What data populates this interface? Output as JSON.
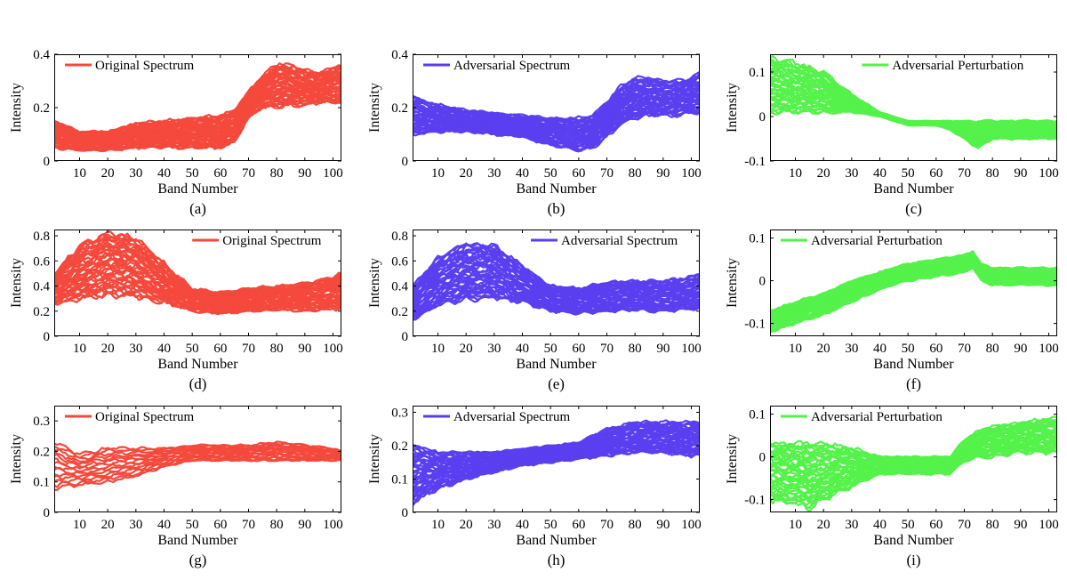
{
  "colors": {
    "original": "#f4493c",
    "adversarial": "#5a3ff0",
    "perturbation": "#54f24a"
  },
  "chart_data": [
    {
      "id": "a",
      "type": "line",
      "caption": "(a)",
      "legend": "Original Spectrum",
      "legend_position": "top-left",
      "color_key": "original",
      "xlabel": "Band Number",
      "ylabel": "Intensity",
      "xlim": [
        1,
        103
      ],
      "ylim": [
        0,
        0.4
      ],
      "xticks": [
        "10",
        "20",
        "30",
        "40",
        "50",
        "60",
        "70",
        "80",
        "90",
        "100"
      ],
      "yticks": [
        {
          "v": 0,
          "label": "0"
        },
        {
          "v": 0.2,
          "label": "0.2"
        },
        {
          "v": 0.4,
          "label": "0.4"
        }
      ],
      "grid": false,
      "series_count": 40,
      "envelope": {
        "x": [
          1,
          10,
          20,
          30,
          40,
          50,
          60,
          65,
          70,
          75,
          80,
          85,
          90,
          95,
          100,
          103
        ],
        "lower": [
          0.05,
          0.04,
          0.04,
          0.05,
          0.05,
          0.05,
          0.05,
          0.07,
          0.16,
          0.2,
          0.2,
          0.21,
          0.21,
          0.22,
          0.22,
          0.22
        ],
        "upper": [
          0.15,
          0.11,
          0.11,
          0.14,
          0.15,
          0.16,
          0.17,
          0.19,
          0.26,
          0.32,
          0.36,
          0.36,
          0.34,
          0.33,
          0.35,
          0.36
        ]
      }
    },
    {
      "id": "b",
      "type": "line",
      "caption": "(b)",
      "legend": "Adversarial Spectrum",
      "legend_position": "top-left",
      "color_key": "adversarial",
      "xlabel": "Band Number",
      "ylabel": "Intensity",
      "xlim": [
        1,
        103
      ],
      "ylim": [
        0,
        0.4
      ],
      "xticks": [
        "10",
        "20",
        "30",
        "40",
        "50",
        "60",
        "70",
        "80",
        "90",
        "100"
      ],
      "yticks": [
        {
          "v": 0,
          "label": "0"
        },
        {
          "v": 0.2,
          "label": "0.2"
        },
        {
          "v": 0.4,
          "label": "0.4"
        }
      ],
      "grid": false,
      "series_count": 40,
      "envelope": {
        "x": [
          1,
          10,
          20,
          30,
          40,
          50,
          60,
          65,
          70,
          75,
          80,
          85,
          90,
          95,
          100,
          103
        ],
        "lower": [
          0.1,
          0.11,
          0.11,
          0.1,
          0.09,
          0.06,
          0.04,
          0.05,
          0.09,
          0.14,
          0.16,
          0.17,
          0.17,
          0.17,
          0.18,
          0.18
        ],
        "upper": [
          0.24,
          0.21,
          0.19,
          0.18,
          0.17,
          0.16,
          0.16,
          0.17,
          0.22,
          0.28,
          0.31,
          0.31,
          0.3,
          0.3,
          0.31,
          0.33
        ]
      }
    },
    {
      "id": "c",
      "type": "line",
      "caption": "(c)",
      "legend": "Adversarial Perturbation",
      "legend_position": "top-right",
      "color_key": "perturbation",
      "xlabel": "Band Number",
      "ylabel": "Intensity",
      "xlim": [
        1,
        103
      ],
      "ylim": [
        -0.1,
        0.14
      ],
      "xticks": [
        "10",
        "20",
        "30",
        "40",
        "50",
        "60",
        "70",
        "80",
        "90",
        "100"
      ],
      "yticks": [
        {
          "v": -0.1,
          "label": "-0.1"
        },
        {
          "v": 0,
          "label": "0"
        },
        {
          "v": 0.1,
          "label": "0.1"
        }
      ],
      "grid": false,
      "series_count": 40,
      "envelope": {
        "x": [
          1,
          10,
          20,
          30,
          40,
          50,
          60,
          65,
          70,
          75,
          80,
          85,
          90,
          95,
          100,
          103
        ],
        "lower": [
          0.01,
          0.01,
          0.01,
          0.01,
          0.0,
          -0.02,
          -0.02,
          -0.03,
          -0.05,
          -0.07,
          -0.05,
          -0.05,
          -0.05,
          -0.05,
          -0.05,
          -0.05
        ],
        "upper": [
          0.13,
          0.12,
          0.1,
          0.05,
          0.01,
          -0.01,
          -0.01,
          -0.01,
          -0.01,
          -0.01,
          -0.01,
          -0.01,
          -0.01,
          -0.01,
          -0.01,
          -0.01
        ]
      }
    },
    {
      "id": "d",
      "type": "line",
      "caption": "(d)",
      "legend": "Original Spectrum",
      "legend_position": "top-right",
      "color_key": "original",
      "xlabel": "Band Number",
      "ylabel": "Intensity",
      "xlim": [
        1,
        103
      ],
      "ylim": [
        0,
        0.85
      ],
      "xticks": [
        "10",
        "20",
        "30",
        "40",
        "50",
        "60",
        "70",
        "80",
        "90",
        "100"
      ],
      "yticks": [
        {
          "v": 0,
          "label": "0"
        },
        {
          "v": 0.2,
          "label": "0.2"
        },
        {
          "v": 0.4,
          "label": "0.4"
        },
        {
          "v": 0.6,
          "label": "0.6"
        },
        {
          "v": 0.8,
          "label": "0.8"
        }
      ],
      "grid": false,
      "series_count": 40,
      "envelope": {
        "x": [
          1,
          10,
          20,
          30,
          40,
          50,
          60,
          70,
          80,
          90,
          100,
          103
        ],
        "lower": [
          0.25,
          0.3,
          0.33,
          0.32,
          0.27,
          0.2,
          0.18,
          0.2,
          0.21,
          0.2,
          0.22,
          0.22
        ],
        "upper": [
          0.5,
          0.72,
          0.82,
          0.78,
          0.58,
          0.38,
          0.35,
          0.38,
          0.4,
          0.42,
          0.47,
          0.5
        ]
      }
    },
    {
      "id": "e",
      "type": "line",
      "caption": "(e)",
      "legend": "Adversarial Spectrum",
      "legend_position": "top-right",
      "color_key": "adversarial",
      "xlabel": "Band Number",
      "ylabel": "Intensity",
      "xlim": [
        1,
        103
      ],
      "ylim": [
        0,
        0.85
      ],
      "xticks": [
        "10",
        "20",
        "30",
        "40",
        "50",
        "60",
        "70",
        "80",
        "90",
        "100"
      ],
      "yticks": [
        {
          "v": 0,
          "label": "0"
        },
        {
          "v": 0.2,
          "label": "0.2"
        },
        {
          "v": 0.4,
          "label": "0.4"
        },
        {
          "v": 0.6,
          "label": "0.6"
        },
        {
          "v": 0.8,
          "label": "0.8"
        }
      ],
      "grid": false,
      "series_count": 40,
      "envelope": {
        "x": [
          1,
          10,
          20,
          30,
          40,
          50,
          60,
          70,
          80,
          90,
          100,
          103
        ],
        "lower": [
          0.13,
          0.25,
          0.3,
          0.31,
          0.27,
          0.2,
          0.18,
          0.2,
          0.21,
          0.2,
          0.22,
          0.22
        ],
        "upper": [
          0.4,
          0.62,
          0.74,
          0.72,
          0.56,
          0.4,
          0.38,
          0.43,
          0.44,
          0.44,
          0.47,
          0.5
        ]
      }
    },
    {
      "id": "f",
      "type": "line",
      "caption": "(f)",
      "legend": "Adversarial Perturbation",
      "legend_position": "top-left",
      "color_key": "perturbation",
      "xlabel": "Band Number",
      "ylabel": "Intensity",
      "xlim": [
        1,
        103
      ],
      "ylim": [
        -0.13,
        0.12
      ],
      "xticks": [
        "10",
        "20",
        "30",
        "40",
        "50",
        "60",
        "70",
        "80",
        "90",
        "100"
      ],
      "yticks": [
        {
          "v": -0.1,
          "label": "-0.1"
        },
        {
          "v": 0,
          "label": "0"
        },
        {
          "v": 0.1,
          "label": "0.1"
        }
      ],
      "grid": false,
      "series_count": 40,
      "envelope": {
        "x": [
          1,
          10,
          20,
          30,
          40,
          50,
          60,
          70,
          73,
          76,
          80,
          90,
          100,
          103
        ],
        "lower": [
          -0.12,
          -0.1,
          -0.08,
          -0.05,
          -0.02,
          0.0,
          0.01,
          0.02,
          0.03,
          0.0,
          -0.01,
          -0.01,
          -0.01,
          -0.01
        ],
        "upper": [
          -0.07,
          -0.05,
          -0.03,
          0.0,
          0.02,
          0.04,
          0.05,
          0.06,
          0.07,
          0.04,
          0.03,
          0.03,
          0.03,
          0.03
        ]
      }
    },
    {
      "id": "g",
      "type": "line",
      "caption": "(g)",
      "legend": "Original Spectrum",
      "legend_position": "top-left",
      "color_key": "original",
      "xlabel": "Band Number",
      "ylabel": "Intensity",
      "xlim": [
        1,
        103
      ],
      "ylim": [
        0,
        0.35
      ],
      "xticks": [
        "10",
        "20",
        "30",
        "40",
        "50",
        "60",
        "70",
        "80",
        "90",
        "100"
      ],
      "yticks": [
        {
          "v": 0,
          "label": "0"
        },
        {
          "v": 0.1,
          "label": "0.1"
        },
        {
          "v": 0.2,
          "label": "0.2"
        },
        {
          "v": 0.3,
          "label": "0.3"
        }
      ],
      "grid": false,
      "series_count": 14,
      "envelope": {
        "x": [
          1,
          10,
          20,
          30,
          40,
          50,
          60,
          70,
          80,
          90,
          100,
          103
        ],
        "lower": [
          0.08,
          0.09,
          0.1,
          0.12,
          0.15,
          0.17,
          0.17,
          0.17,
          0.17,
          0.17,
          0.17,
          0.17
        ],
        "upper": [
          0.23,
          0.19,
          0.21,
          0.21,
          0.21,
          0.22,
          0.22,
          0.22,
          0.23,
          0.22,
          0.21,
          0.2
        ]
      }
    },
    {
      "id": "h",
      "type": "line",
      "caption": "(h)",
      "legend": "Adversarial Spectrum",
      "legend_position": "top-left",
      "color_key": "adversarial",
      "xlabel": "Band Number",
      "ylabel": "Intensity",
      "xlim": [
        1,
        103
      ],
      "ylim": [
        0,
        0.32
      ],
      "xticks": [
        "10",
        "20",
        "30",
        "40",
        "50",
        "60",
        "70",
        "80",
        "90",
        "100"
      ],
      "yticks": [
        {
          "v": 0,
          "label": "0"
        },
        {
          "v": 0.1,
          "label": "0.1"
        },
        {
          "v": 0.2,
          "label": "0.2"
        },
        {
          "v": 0.3,
          "label": "0.3"
        }
      ],
      "grid": false,
      "series_count": 40,
      "envelope": {
        "x": [
          1,
          10,
          20,
          30,
          40,
          50,
          60,
          70,
          80,
          90,
          100,
          103
        ],
        "lower": [
          0.03,
          0.07,
          0.1,
          0.12,
          0.14,
          0.15,
          0.16,
          0.17,
          0.18,
          0.18,
          0.17,
          0.17
        ],
        "upper": [
          0.2,
          0.18,
          0.18,
          0.18,
          0.19,
          0.2,
          0.21,
          0.25,
          0.27,
          0.27,
          0.27,
          0.27
        ]
      }
    },
    {
      "id": "i",
      "type": "line",
      "caption": "(i)",
      "legend": "Adversarial Perturbation",
      "legend_position": "top-left",
      "color_key": "perturbation",
      "xlabel": "Band Number",
      "ylabel": "Intensity",
      "xlim": [
        1,
        103
      ],
      "ylim": [
        -0.13,
        0.12
      ],
      "xticks": [
        "10",
        "20",
        "30",
        "40",
        "50",
        "60",
        "70",
        "80",
        "90",
        "100"
      ],
      "yticks": [
        {
          "v": -0.1,
          "label": "-0.1"
        },
        {
          "v": 0,
          "label": "0"
        },
        {
          "v": 0.1,
          "label": "0.1"
        }
      ],
      "grid": false,
      "series_count": 40,
      "envelope": {
        "x": [
          1,
          10,
          15,
          20,
          30,
          40,
          50,
          60,
          65,
          70,
          75,
          80,
          90,
          100,
          103
        ],
        "lower": [
          -0.1,
          -0.11,
          -0.12,
          -0.1,
          -0.07,
          -0.04,
          -0.04,
          -0.04,
          -0.04,
          -0.01,
          0.0,
          0.0,
          0.01,
          0.01,
          0.01
        ],
        "upper": [
          0.03,
          0.03,
          0.03,
          0.03,
          0.02,
          0.0,
          0.0,
          0.0,
          0.0,
          0.04,
          0.06,
          0.07,
          0.08,
          0.09,
          0.09
        ]
      }
    }
  ]
}
